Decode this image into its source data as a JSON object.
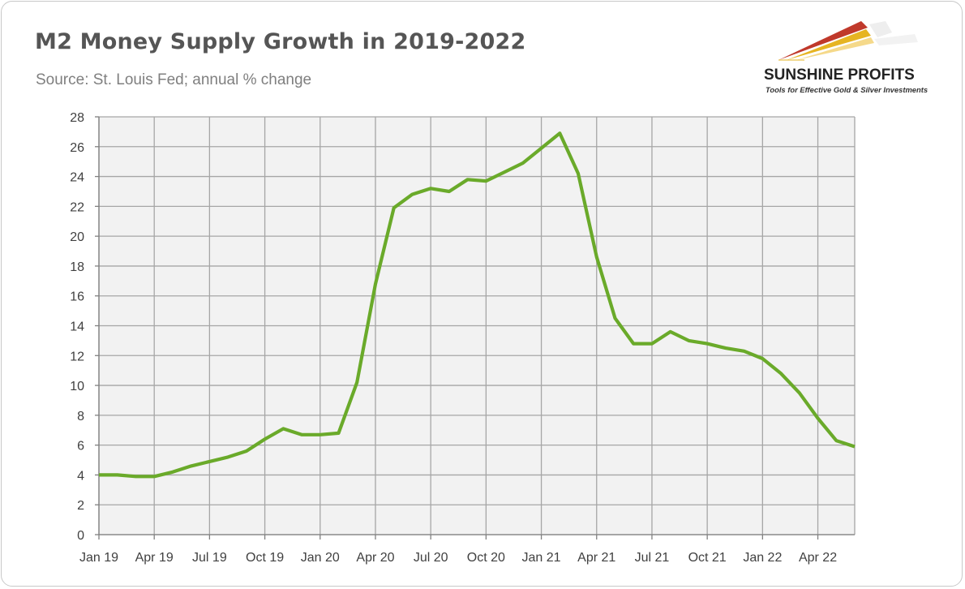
{
  "header": {
    "title": "M2 Money Supply Growth in 2019-2022",
    "subtitle": "Source: St. Louis Fed; annual % change"
  },
  "logo": {
    "name": "SUNSHINE PROFITS",
    "tagline": "Tools for Effective Gold & Silver Investments",
    "colors": [
      "#c0392b",
      "#e6b422",
      "#f5d98a",
      "#dddddd"
    ]
  },
  "chart_data": {
    "type": "line",
    "title": "M2 Money Supply Growth in 2019-2022",
    "subtitle": "Source: St. Louis Fed; annual % change",
    "xlabel": "",
    "ylabel": "",
    "ylim": [
      0,
      28
    ],
    "yticks": [
      0,
      2,
      4,
      6,
      8,
      10,
      12,
      14,
      16,
      18,
      20,
      22,
      24,
      26,
      28
    ],
    "xtick_labels": [
      "Jan 19",
      "Apr 19",
      "Jul 19",
      "Oct 19",
      "Jan 20",
      "Apr 20",
      "Jul 20",
      "Oct 20",
      "Jan 21",
      "Apr 21",
      "Jul 21",
      "Oct 21",
      "Jan 22",
      "Apr 22"
    ],
    "x": [
      "2019-01",
      "2019-02",
      "2019-03",
      "2019-04",
      "2019-05",
      "2019-06",
      "2019-07",
      "2019-08",
      "2019-09",
      "2019-10",
      "2019-11",
      "2019-12",
      "2020-01",
      "2020-02",
      "2020-03",
      "2020-04",
      "2020-05",
      "2020-06",
      "2020-07",
      "2020-08",
      "2020-09",
      "2020-10",
      "2020-11",
      "2020-12",
      "2021-01",
      "2021-02",
      "2021-03",
      "2021-04",
      "2021-05",
      "2021-06",
      "2021-07",
      "2021-08",
      "2021-09",
      "2021-10",
      "2021-11",
      "2021-12",
      "2022-01",
      "2022-02",
      "2022-03",
      "2022-04",
      "2022-05",
      "2022-06"
    ],
    "series": [
      {
        "color": "#6aaa2a",
        "values": [
          4.0,
          4.0,
          3.9,
          3.9,
          4.2,
          4.6,
          4.9,
          5.2,
          5.6,
          6.4,
          7.1,
          6.7,
          6.7,
          6.8,
          10.2,
          16.8,
          21.9,
          22.8,
          23.2,
          23.0,
          23.8,
          23.7,
          24.3,
          24.9,
          25.9,
          26.9,
          24.2,
          18.6,
          14.5,
          12.8,
          12.8,
          13.6,
          13.0,
          12.8,
          12.5,
          12.3,
          11.8,
          10.8,
          9.5,
          7.8,
          6.3,
          5.9
        ]
      }
    ],
    "grid": true,
    "legend": "none",
    "plot_background": "#f2f2f2",
    "gridline_color": "#a6a6a6"
  }
}
